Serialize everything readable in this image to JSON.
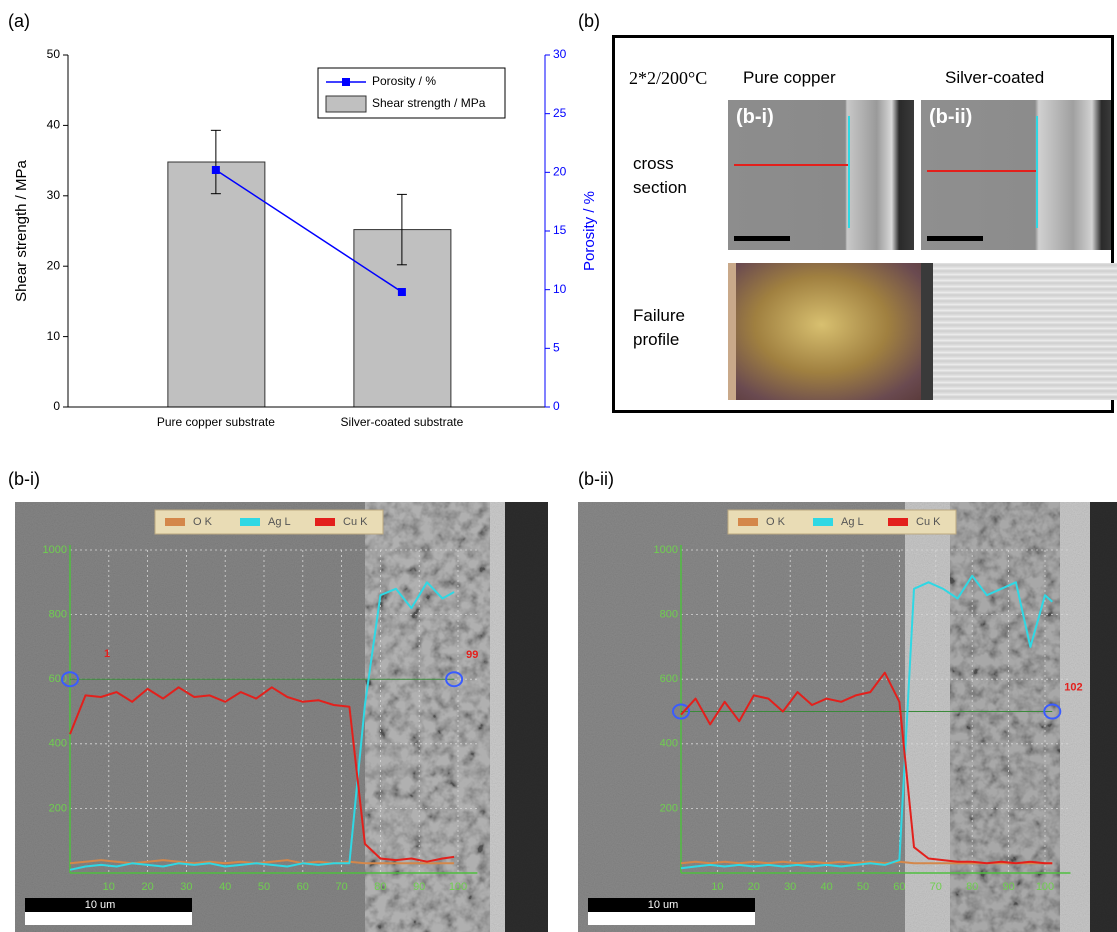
{
  "panel_labels": [
    "(a)",
    "(b)",
    "(b-i)",
    "(b-ii)"
  ],
  "panel_b": {
    "condition": "2*2/200°C",
    "columns": [
      "Pure copper",
      "Silver-coated"
    ],
    "rows": [
      "cross section",
      "Failure profile"
    ],
    "insets": [
      "(b-i)",
      "(b-ii)"
    ]
  },
  "chart_data": [
    {
      "type": "bar",
      "categories": [
        "Pure copper substrate",
        "Silver-coated substrate"
      ],
      "series": [
        {
          "name": "Porosity / %",
          "type": "line",
          "axis": "y2",
          "color": "#0000ff",
          "values": [
            20.2,
            9.8
          ]
        },
        {
          "name": "Shear strength / MPa",
          "color": "#c0c0c0",
          "values": [
            34.8,
            25.2
          ],
          "errors": [
            4.5,
            5.0
          ]
        }
      ],
      "y_label": "Shear strength / MPa",
      "y2_label": "Porosity / %",
      "ylim": [
        0,
        50
      ],
      "yticks": [
        0,
        10,
        20,
        30,
        40,
        50
      ],
      "y2lim": [
        0,
        30
      ],
      "y2ticks": [
        0,
        5,
        10,
        15,
        20,
        25,
        30
      ],
      "legend": "upper right"
    },
    {
      "type": "line",
      "x": [
        0,
        4,
        8,
        12,
        16,
        20,
        24,
        28,
        32,
        36,
        40,
        44,
        48,
        52,
        56,
        60,
        64,
        68,
        72,
        76,
        80,
        84,
        88,
        92,
        96,
        99
      ],
      "series": [
        {
          "name": "O K",
          "color": "#d4874a",
          "values": [
            30,
            35,
            40,
            35,
            30,
            35,
            40,
            35,
            30,
            35,
            30,
            35,
            30,
            35,
            40,
            30,
            35,
            30,
            35,
            30,
            30,
            30,
            30,
            30,
            30,
            30
          ]
        },
        {
          "name": "Ag L",
          "color": "#2fd8e4",
          "values": [
            10,
            20,
            25,
            20,
            30,
            25,
            20,
            30,
            25,
            30,
            20,
            25,
            30,
            25,
            20,
            30,
            25,
            30,
            30,
            520,
            860,
            880,
            820,
            900,
            850,
            870
          ]
        },
        {
          "name": "Cu K",
          "color": "#e3201c",
          "values": [
            430,
            550,
            545,
            560,
            530,
            570,
            540,
            575,
            545,
            550,
            530,
            560,
            540,
            575,
            545,
            530,
            535,
            520,
            515,
            90,
            45,
            40,
            45,
            35,
            45,
            50
          ]
        }
      ],
      "marker_level": 600,
      "start_label": "1",
      "end_label": "99",
      "scale_bar": "10 um",
      "xlim": [
        0,
        105
      ],
      "xticks": [
        10,
        20,
        30,
        40,
        50,
        60,
        70,
        80,
        90,
        100
      ],
      "ylim": [
        0,
        1000
      ],
      "yticks": [
        200,
        400,
        600,
        800,
        1000
      ],
      "grid": true
    },
    {
      "type": "line",
      "x": [
        0,
        4,
        8,
        12,
        16,
        20,
        24,
        28,
        32,
        36,
        40,
        44,
        48,
        52,
        56,
        60,
        64,
        68,
        72,
        76,
        80,
        84,
        88,
        92,
        96,
        100,
        102
      ],
      "series": [
        {
          "name": "O K",
          "color": "#d4874a",
          "values": [
            30,
            35,
            30,
            35,
            30,
            35,
            30,
            35,
            30,
            35,
            30,
            35,
            30,
            35,
            30,
            35,
            30,
            30,
            30,
            30,
            30,
            30,
            30,
            30,
            30,
            30,
            30
          ]
        },
        {
          "name": "Ag L",
          "color": "#2fd8e4",
          "values": [
            15,
            20,
            25,
            20,
            25,
            20,
            25,
            20,
            25,
            20,
            25,
            20,
            25,
            30,
            25,
            40,
            880,
            900,
            880,
            850,
            920,
            860,
            880,
            900,
            700,
            860,
            840
          ]
        },
        {
          "name": "Cu K",
          "color": "#e3201c",
          "values": [
            490,
            540,
            460,
            530,
            470,
            550,
            540,
            500,
            560,
            520,
            540,
            530,
            550,
            560,
            620,
            530,
            80,
            45,
            40,
            35,
            35,
            30,
            35,
            30,
            35,
            30,
            30
          ]
        }
      ],
      "marker_level": 500,
      "end_label": "102",
      "scale_bar": "10 um",
      "xlim": [
        0,
        107
      ],
      "xticks": [
        10,
        20,
        30,
        40,
        50,
        60,
        70,
        80,
        90,
        100
      ],
      "ylim": [
        0,
        1000
      ],
      "yticks": [
        200,
        400,
        600,
        800,
        1000
      ],
      "grid": true
    }
  ]
}
